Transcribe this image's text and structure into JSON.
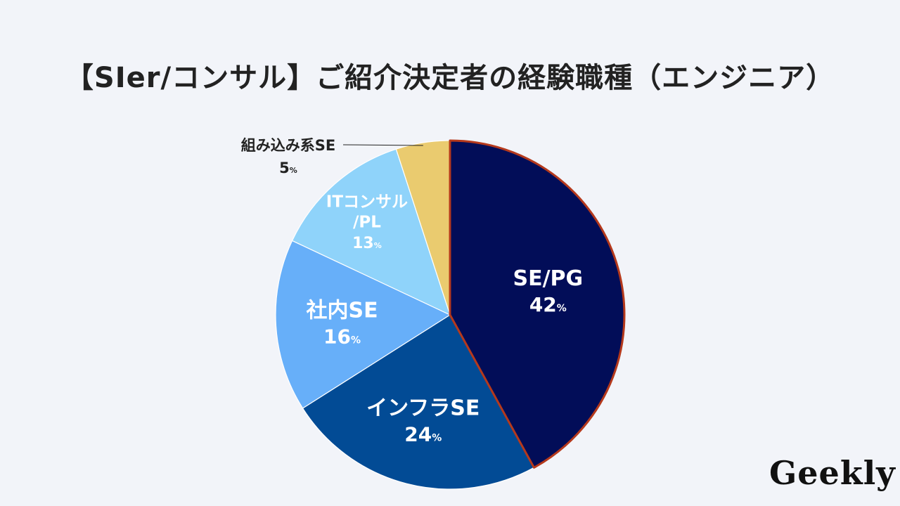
{
  "title": "【SIer/コンサル】ご紹介決定者の経験職種（エンジニア）",
  "chart_data": {
    "type": "pie",
    "unit": "%",
    "slices": [
      {
        "label": "SE/PG",
        "value": 42,
        "color": "#020d58",
        "text": "light"
      },
      {
        "label": "インフラSE",
        "value": 24,
        "color": "#024b95",
        "text": "light"
      },
      {
        "label": "社内SE",
        "value": 16,
        "color": "#67aff9",
        "text": "light"
      },
      {
        "label": "ITコンサル/PL",
        "value": 13,
        "color": "#8fd3fa",
        "text": "light"
      },
      {
        "label": "組み込み系SE",
        "value": 5,
        "color": "#eacb6f",
        "text": "dark"
      }
    ]
  },
  "logo": {
    "text": "Geekly"
  }
}
